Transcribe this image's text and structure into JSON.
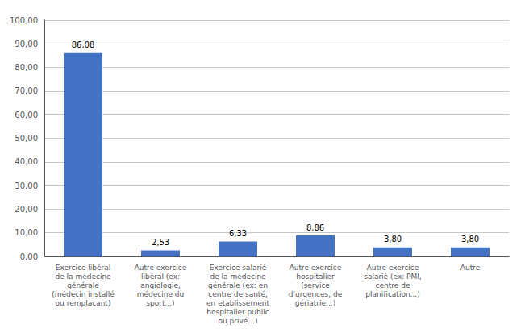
{
  "chart_data": {
    "type": "bar",
    "categories": [
      "Exercice libéral\nde la médecine\ngénérale\n(médecin installé\nou remplacant)",
      "Autre exercice\nlibéral (ex:\nangiologie,\nmédecine du\nsport...)",
      "Exercice salarié\nde la médecine\ngénérale (ex: en\ncentre de santé,\nen etablissement\nhospitalier public\nou privé...)",
      "Autre exercice\nhospitalier\n(service\nd'urgences, de\ngériatrie...)",
      "Autre exercice\nsalarié (ex: PMI,\ncentre de\nplanification...)",
      "Autre"
    ],
    "values": [
      86.08,
      2.53,
      6.33,
      8.86,
      3.8,
      3.8
    ],
    "value_labels": [
      "86,08",
      "2,53",
      "6,33",
      "8,86",
      "3,80",
      "3,80"
    ],
    "color": "#4472C4",
    "ylim": [
      0,
      100
    ],
    "yticks": [
      {
        "value": 0,
        "label": "0,00"
      },
      {
        "value": 10,
        "label": "10,00"
      },
      {
        "value": 20,
        "label": "20,00"
      },
      {
        "value": 30,
        "label": "30,00"
      },
      {
        "value": 40,
        "label": "40,00"
      },
      {
        "value": 50,
        "label": "50,00"
      },
      {
        "value": 60,
        "label": "60,00"
      },
      {
        "value": 70,
        "label": "70,00"
      },
      {
        "value": 80,
        "label": "80,00"
      },
      {
        "value": 90,
        "label": "90,00"
      },
      {
        "value": 100,
        "label": "100,00"
      }
    ],
    "grid": true,
    "data_labels": true
  }
}
